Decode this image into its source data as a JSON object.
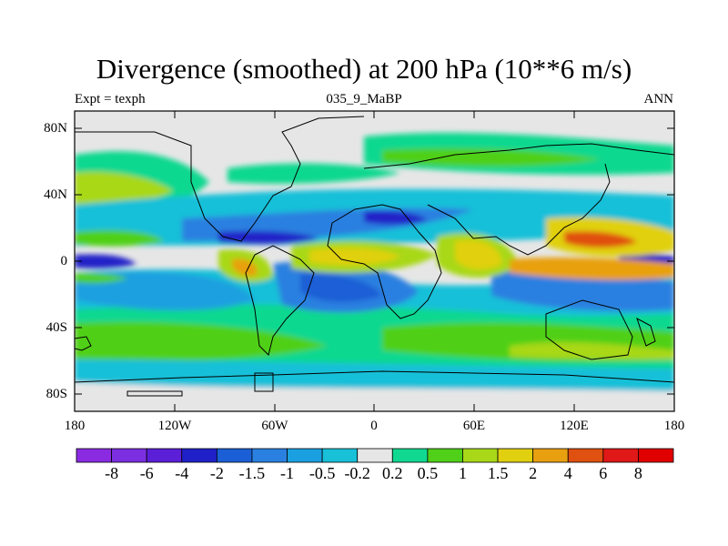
{
  "title": "Divergence (smoothed) at 200 hPa (10**6 m/s)",
  "subtitle_left": "Expt = texph",
  "subtitle_center": "035_9_MaBP",
  "subtitle_right": "ANN",
  "lat_labels": [
    "80N",
    "40N",
    "0",
    "40S",
    "80S"
  ],
  "lon_labels": [
    "180",
    "120W",
    "60W",
    "0",
    "60E",
    "120E",
    "180"
  ],
  "colorbar": {
    "labels": [
      "-8",
      "-6",
      "-4",
      "-2",
      "-1.5",
      "-1",
      "-0.5",
      "-0.2",
      "0.2",
      "0.5",
      "1",
      "1.5",
      "2",
      "4",
      "6",
      "8"
    ],
    "colors": [
      "#8a2be2",
      "#7b2fe0",
      "#5b1fd8",
      "#2020c8",
      "#1a5fd6",
      "#2a80e0",
      "#1aa0e0",
      "#18c0d8",
      "#e6e6e6",
      "#10d890",
      "#50d018",
      "#a8d818",
      "#e0d010",
      "#e8a010",
      "#e05010",
      "#e01818",
      "#e00000"
    ]
  },
  "map": {
    "lon_range": [
      -180,
      180
    ],
    "lat_range": [
      -90,
      90
    ],
    "background_color": "#e6e6e6"
  }
}
